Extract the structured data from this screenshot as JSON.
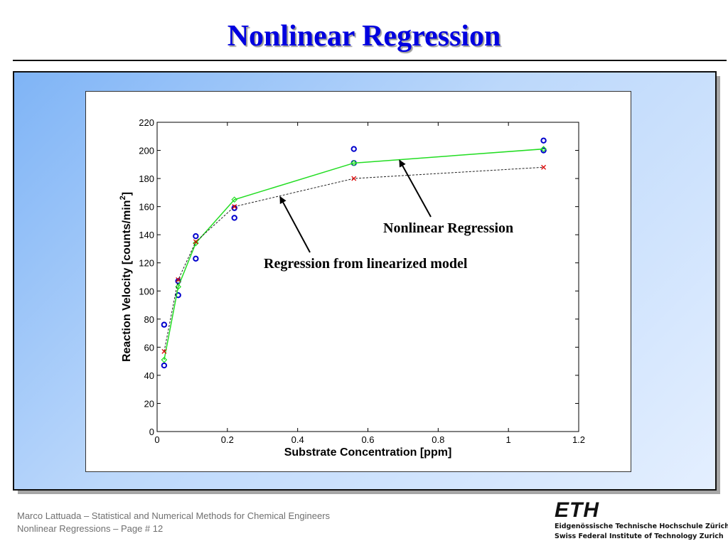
{
  "slide": {
    "title": "Nonlinear Regression"
  },
  "footer": {
    "line1": "Marco Lattuada – Statistical and Numerical Methods for Chemical Engineers",
    "line2": "Nonlinear Regressions – Page #  12"
  },
  "logo": {
    "mark": "ETH",
    "line1": "Eidgenössische Technische Hochschule Zürich",
    "line2": "Swiss Federal Institute of Technology Zurich"
  },
  "chart_data": {
    "type": "scatter",
    "xlabel": "Substrate Concentration [ppm]",
    "ylabel_main": "Reaction Velocity [counts/min",
    "ylabel_sup": "2",
    "ylabel_end": "]",
    "xlim": [
      0,
      1.2
    ],
    "ylim": [
      0,
      220
    ],
    "xticks": [
      0,
      0.2,
      0.4,
      0.6,
      0.8,
      1,
      1.2
    ],
    "xtick_labels": [
      "0",
      "0.2",
      "0.4",
      "0.6",
      "0.8",
      "1",
      "1.2"
    ],
    "yticks": [
      0,
      20,
      40,
      60,
      80,
      100,
      120,
      140,
      160,
      180,
      200,
      220
    ],
    "ytick_labels": [
      "0",
      "20",
      "40",
      "60",
      "80",
      "100",
      "120",
      "140",
      "160",
      "180",
      "200",
      "220"
    ],
    "grid": false,
    "series": [
      {
        "role": "observed",
        "marker": "circle",
        "color": "#0000cc",
        "x": [
          0.02,
          0.02,
          0.06,
          0.06,
          0.11,
          0.11,
          0.22,
          0.22,
          0.56,
          0.56,
          1.1,
          1.1
        ],
        "y": [
          76,
          47,
          97,
          107,
          123,
          139,
          159,
          152,
          191,
          201,
          207,
          200
        ]
      },
      {
        "role": "nonlinear-fit",
        "marker": "diamond",
        "line": "solid",
        "color": "#22dd22",
        "x": [
          0.02,
          0.06,
          0.11,
          0.22,
          0.56,
          1.1
        ],
        "y": [
          51,
          103,
          134,
          165,
          191,
          201
        ]
      },
      {
        "role": "linearized-fit",
        "marker": "x",
        "line": "dashed",
        "color": "#222222",
        "marker_color": "#dd0000",
        "x": [
          0.02,
          0.06,
          0.11,
          0.22,
          0.56,
          1.1
        ],
        "y": [
          57,
          108,
          135,
          160,
          180,
          188
        ]
      }
    ],
    "annotations": [
      {
        "text": "Nonlinear Regression",
        "arrow_to": [
          0.69,
          193
        ]
      },
      {
        "text": "Regression from linearized model",
        "arrow_to": [
          0.35,
          167
        ]
      }
    ]
  }
}
